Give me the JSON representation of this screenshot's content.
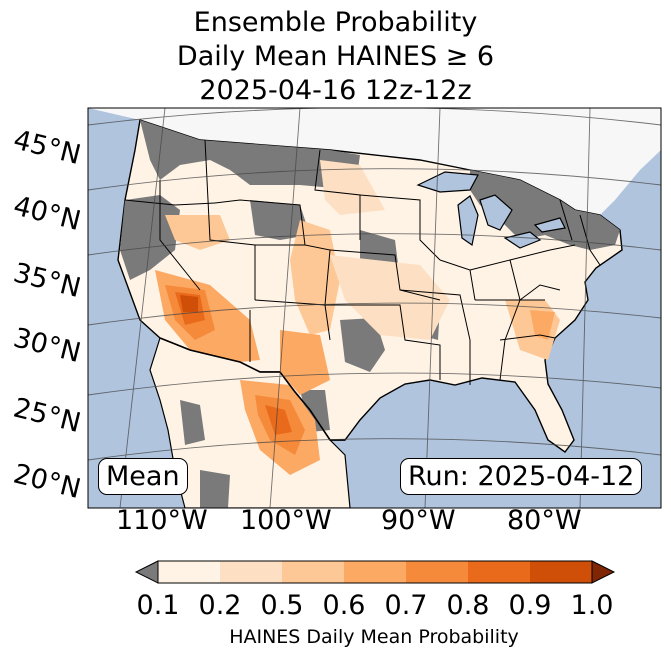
{
  "title": {
    "line1": "Ensemble Probability",
    "line2": "Daily Mean HAINES ≥ 6",
    "line3": "2025-04-16 12z-12z"
  },
  "map": {
    "lat_labels": [
      "45°N",
      "40°N",
      "35°N",
      "30°N",
      "25°N",
      "20°N"
    ],
    "lon_labels": [
      "110°W",
      "100°W",
      "90°W",
      "80°W"
    ],
    "mean_label": "Mean",
    "run_label": "Run: 2025-04-12",
    "ocean_color": "#b0c4de",
    "nodata_color": "#7a7a7a",
    "region": "Contiguous United States"
  },
  "colorbar": {
    "ticks": [
      "0.1",
      "0.2",
      "0.5",
      "0.6",
      "0.7",
      "0.8",
      "0.9",
      "1.0"
    ],
    "colors": [
      "#fff3e6",
      "#fde0c3",
      "#fdc895",
      "#fca964",
      "#f68a3b",
      "#e86a1a",
      "#cf4e08"
    ],
    "under_color": "#7a7a7a",
    "over_color": "#7f2704",
    "label": "HAINES Daily Mean Probability"
  }
}
